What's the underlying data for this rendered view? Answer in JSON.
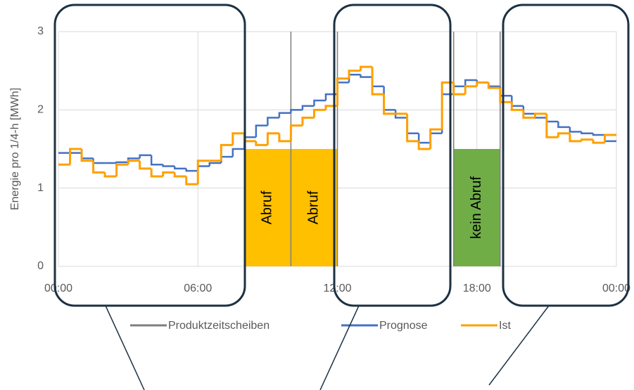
{
  "chart_data": {
    "type": "line",
    "step": true,
    "y_label": "Energie pro 1/4-h [MWh]",
    "x": [
      0,
      0.5,
      1,
      1.5,
      2,
      2.5,
      3,
      3.5,
      4,
      4.5,
      5,
      5.5,
      6,
      6.5,
      7,
      7.5,
      8,
      8.5,
      9,
      9.5,
      10,
      10.5,
      11,
      11.5,
      12,
      12.5,
      13,
      13.5,
      14,
      14.5,
      15,
      15.5,
      16,
      16.5,
      17,
      17.5,
      18,
      18.5,
      19,
      19.5,
      20,
      20.5,
      21,
      21.5,
      22,
      22.5,
      23,
      23.5
    ],
    "series": [
      {
        "name": "Prognose",
        "color": "#4472c4",
        "values": [
          1.45,
          1.45,
          1.38,
          1.32,
          1.32,
          1.33,
          1.38,
          1.42,
          1.3,
          1.28,
          1.25,
          1.22,
          1.28,
          1.32,
          1.4,
          1.5,
          1.65,
          1.8,
          1.9,
          1.96,
          2.0,
          2.05,
          2.12,
          2.2,
          2.35,
          2.45,
          2.42,
          2.3,
          2.0,
          1.9,
          1.7,
          1.58,
          1.7,
          2.2,
          2.3,
          2.38,
          2.35,
          2.3,
          2.18,
          2.05,
          1.95,
          1.9,
          1.85,
          1.78,
          1.72,
          1.7,
          1.68,
          1.6
        ]
      },
      {
        "name": "Ist",
        "color": "#ffa000",
        "values": [
          1.3,
          1.5,
          1.35,
          1.2,
          1.15,
          1.3,
          1.35,
          1.25,
          1.15,
          1.2,
          1.15,
          1.05,
          1.35,
          1.35,
          1.55,
          1.7,
          1.6,
          1.55,
          1.7,
          1.6,
          1.8,
          1.9,
          2.0,
          2.05,
          2.4,
          2.5,
          2.55,
          2.2,
          1.95,
          1.95,
          1.6,
          1.5,
          1.75,
          2.35,
          2.2,
          2.3,
          2.35,
          2.28,
          2.1,
          2.0,
          1.9,
          1.95,
          1.65,
          1.7,
          1.6,
          1.62,
          1.58,
          1.68
        ]
      }
    ],
    "slices": {
      "name": "Produktzeitscheiben",
      "color": "#7f7f7f",
      "x": [
        8,
        10,
        12,
        17,
        19
      ]
    },
    "calls": [
      {
        "label": "Abruf",
        "start": 8,
        "end": 10,
        "value": 1.5,
        "color": "#ffc000"
      },
      {
        "label": "Abruf",
        "start": 10,
        "end": 12,
        "value": 1.5,
        "color": "#ffc000"
      },
      {
        "label": "kein Abruf",
        "start": 17,
        "end": 19,
        "value": 1.5,
        "color": "#70ad47"
      }
    ],
    "xlim": [
      0,
      24
    ],
    "xticks": [
      {
        "value": 0,
        "label": "00:00"
      },
      {
        "value": 6,
        "label": "06:00"
      },
      {
        "value": 12,
        "label": "12:00"
      },
      {
        "value": 18,
        "label": "18:00"
      },
      {
        "value": 24,
        "label": "00:00"
      }
    ],
    "ylim": [
      0,
      3
    ],
    "yticks": [
      0,
      1,
      2,
      3
    ],
    "grid": true
  }
}
